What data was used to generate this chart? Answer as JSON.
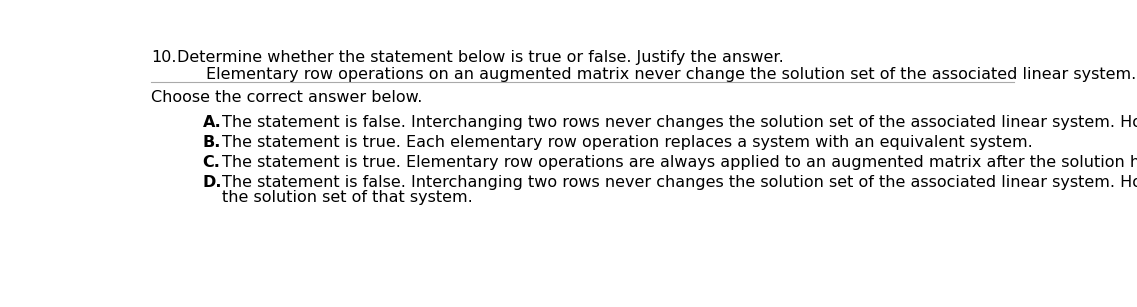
{
  "bg_color": "#ffffff",
  "question_number": "10.",
  "question_text": "Determine whether the statement below is true or false. Justify the answer.",
  "statement": "Elementary row operations on an augmented matrix never change the solution set of the associated linear system.",
  "choose_text": "Choose the correct answer below.",
  "options": [
    {
      "letter": "A.",
      "text": "The statement is false. Interchanging two rows never changes the solution set of the associated linear system. How"
    },
    {
      "letter": "B.",
      "text": "The statement is true. Each elementary row operation replaces a system with an equivalent system."
    },
    {
      "letter": "C.",
      "text": "The statement is true. Elementary row operations are always applied to an augmented matrix after the solution has"
    },
    {
      "letter": "D.",
      "text": "The statement is false. Interchanging two rows never changes the solution set of the associated linear system. How",
      "continuation": "the solution set of that system."
    }
  ],
  "font_size": 11.5,
  "text_color": "#000000",
  "line_color": "#aaaaaa"
}
